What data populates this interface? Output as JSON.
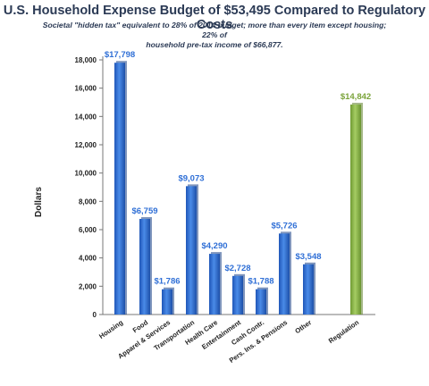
{
  "chart_data": {
    "type": "bar",
    "title": "U.S. Household Expense Budget of $53,495 Compared to Regulatory Costs",
    "subtitle_line1": "Societal \"hidden tax\" equivalent to 28% of 2014 budget; more than every item except housing; 22% of",
    "subtitle_line2": "household pre-tax income of $66,877.",
    "ylabel": "Dollars",
    "xlabel": "",
    "ylim": [
      0,
      18000
    ],
    "yticks": [
      "0",
      "2,000",
      "4,000",
      "6,000",
      "8,000",
      "10,000",
      "12,000",
      "14,000",
      "16,000",
      "18,000"
    ],
    "grid": false,
    "categories": [
      "Housing",
      "Food",
      "Apparel & Services",
      "Transportation",
      "Health Care",
      "Entertainment",
      "Cash Contr.",
      "Pers. Ins. & Pensions",
      "Other",
      "Regulation"
    ],
    "values": [
      17798,
      6759,
      1786,
      9073,
      4290,
      2728,
      1788,
      5726,
      3548,
      14842
    ],
    "value_labels": [
      "$17,798",
      "$6,759",
      "$1,786",
      "$9,073",
      "$4,290",
      "$2,728",
      "$1,788",
      "$5,726",
      "$3,548",
      "$14,842"
    ],
    "colors": {
      "expense": "#2f6fd6",
      "regulation": "#8db84a"
    }
  }
}
